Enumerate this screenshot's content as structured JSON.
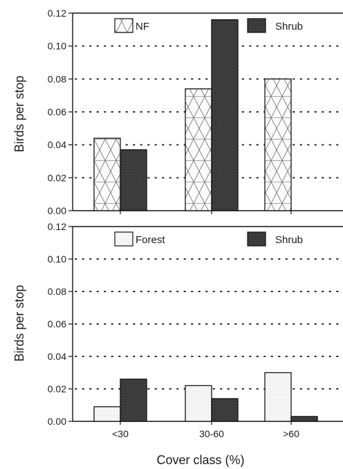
{
  "chart_data": [
    {
      "type": "bar",
      "categories": [
        "<30",
        "30-60",
        ">60"
      ],
      "series": [
        {
          "name": "NF",
          "values": [
            0.044,
            0.074,
            0.08
          ],
          "style": "crosshatch"
        },
        {
          "name": "Shrub",
          "values": [
            0.037,
            0.116,
            null
          ],
          "style": "dark"
        }
      ],
      "xlabel": "",
      "ylabel": "Birds per stop",
      "ylim": [
        0,
        0.12
      ],
      "yticks": [
        "0.00",
        "0.02",
        "0.04",
        "0.06",
        "0.08",
        "0.10",
        "0.12"
      ],
      "grid": "dotted horizontal",
      "legend_position": "top"
    },
    {
      "type": "bar",
      "categories": [
        "<30",
        "30-60",
        ">60"
      ],
      "series": [
        {
          "name": "Forest",
          "values": [
            0.009,
            0.022,
            0.03
          ],
          "style": "light"
        },
        {
          "name": "Shrub",
          "values": [
            0.026,
            0.014,
            0.003
          ],
          "style": "dark"
        }
      ],
      "xlabel": "Cover class (%)",
      "ylabel": "Birds per stop",
      "ylim": [
        0,
        0.12
      ],
      "yticks": [
        "0.00",
        "0.02",
        "0.04",
        "0.06",
        "0.08",
        "0.10",
        "0.12"
      ],
      "grid": "dotted horizontal",
      "legend_position": "top"
    }
  ],
  "colors": {
    "axis": "#111111",
    "dark_bar": "#3a3a3a",
    "light_bar": "#f4f4f4",
    "hatch_line": "#6a6a6a",
    "grid": "#222222"
  }
}
